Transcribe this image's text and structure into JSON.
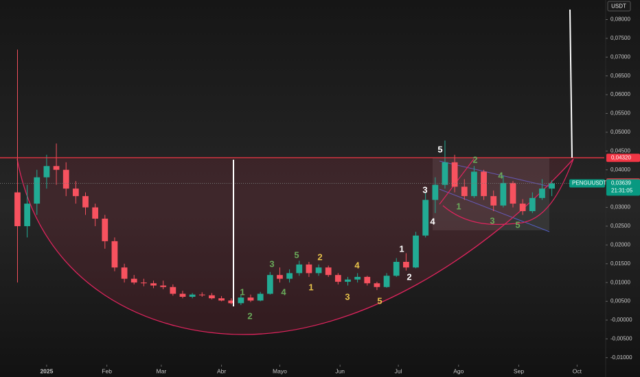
{
  "chart_data": {
    "type": "candlestick",
    "currency": "USDT",
    "up_color": "#22ab94",
    "down_color": "#f7525f",
    "xlim": [
      -24,
      287
    ],
    "xticks": [
      {
        "value": 0,
        "label": "2025"
      },
      {
        "value": 31,
        "label": "Feb"
      },
      {
        "value": 59,
        "label": "Mar"
      },
      {
        "value": 90,
        "label": "Abr"
      },
      {
        "value": 120,
        "label": "Mayo"
      },
      {
        "value": 151,
        "label": "Jun"
      },
      {
        "value": 181,
        "label": "Jul"
      },
      {
        "value": 212,
        "label": "Ago"
      },
      {
        "value": 243,
        "label": "Sep"
      },
      {
        "value": 273,
        "label": "Oct"
      }
    ],
    "ylim": [
      -0.0115,
      0.0852
    ],
    "yticks": [
      {
        "value": 0.08,
        "label": "0,08000"
      },
      {
        "value": 0.075,
        "label": "0,07500"
      },
      {
        "value": 0.07,
        "label": "0,07000"
      },
      {
        "value": 0.065,
        "label": "0,06500"
      },
      {
        "value": 0.06,
        "label": "0,06000"
      },
      {
        "value": 0.055,
        "label": "0,05500"
      },
      {
        "value": 0.05,
        "label": "0,05000"
      },
      {
        "value": 0.045,
        "label": "0,04500"
      },
      {
        "value": 0.04,
        "label": "0,04000"
      },
      {
        "value": 0.03,
        "label": "0,03000"
      },
      {
        "value": 0.025,
        "label": "0,02500"
      },
      {
        "value": 0.02,
        "label": "0,02000"
      },
      {
        "value": 0.015,
        "label": "0,01500"
      },
      {
        "value": 0.01,
        "label": "0,01000"
      },
      {
        "value": 0.005,
        "label": "0,00500"
      },
      {
        "value": 0,
        "label": "-0,00000"
      },
      {
        "value": -0.005,
        "label": "-0,00500"
      },
      {
        "value": -0.01,
        "label": "-0,01000"
      }
    ],
    "candles": {
      "x": [
        -15,
        -10,
        -5,
        0,
        5,
        10,
        15,
        20,
        25,
        30,
        35,
        40,
        45,
        50,
        55,
        60,
        65,
        70,
        75,
        80,
        85,
        90,
        95,
        100,
        105,
        110,
        115,
        120,
        125,
        130,
        135,
        140,
        145,
        150,
        155,
        160,
        165,
        170,
        175,
        180,
        185,
        190,
        195,
        200,
        205,
        210,
        215,
        220,
        225,
        230,
        235,
        240,
        245,
        250,
        255,
        260
      ],
      "open": [
        0.034,
        0.025,
        0.031,
        0.038,
        0.041,
        0.04,
        0.035,
        0.033,
        0.03,
        0.027,
        0.021,
        0.014,
        0.011,
        0.01,
        0.0098,
        0.0092,
        0.0088,
        0.007,
        0.0062,
        0.0068,
        0.0066,
        0.0058,
        0.0052,
        0.0045,
        0.006,
        0.0052,
        0.007,
        0.012,
        0.011,
        0.0125,
        0.0148,
        0.0125,
        0.014,
        0.012,
        0.0102,
        0.0108,
        0.0115,
        0.0098,
        0.0088,
        0.0118,
        0.0155,
        0.014,
        0.0225,
        0.032,
        0.036,
        0.042,
        0.0355,
        0.033,
        0.0395,
        0.033,
        0.0305,
        0.0365,
        0.031,
        0.029,
        0.0325,
        0.035
      ],
      "high": [
        0.072,
        0.036,
        0.04,
        0.044,
        0.047,
        0.042,
        0.037,
        0.034,
        0.031,
        0.028,
        0.022,
        0.015,
        0.012,
        0.011,
        0.0105,
        0.0105,
        0.0095,
        0.0078,
        0.0072,
        0.0074,
        0.0072,
        0.0064,
        0.0058,
        0.0068,
        0.0068,
        0.0075,
        0.0128,
        0.014,
        0.0135,
        0.0158,
        0.0155,
        0.0148,
        0.0145,
        0.0125,
        0.0115,
        0.0125,
        0.0118,
        0.0102,
        0.0125,
        0.0165,
        0.0178,
        0.0235,
        0.034,
        0.038,
        0.0478,
        0.044,
        0.0375,
        0.041,
        0.04,
        0.0345,
        0.0385,
        0.037,
        0.0322,
        0.034,
        0.0375,
        0.0372
      ],
      "low": [
        0.01,
        0.022,
        0.028,
        0.035,
        0.036,
        0.033,
        0.031,
        0.028,
        0.025,
        0.019,
        0.013,
        0.01,
        0.0095,
        0.009,
        0.0085,
        0.0082,
        0.0065,
        0.0058,
        0.0058,
        0.0062,
        0.0055,
        0.005,
        0.0042,
        0.004,
        0.0048,
        0.005,
        0.0068,
        0.01,
        0.01,
        0.0118,
        0.0115,
        0.0118,
        0.0115,
        0.0095,
        0.0092,
        0.01,
        0.0092,
        0.008,
        0.0086,
        0.0115,
        0.0132,
        0.0138,
        0.022,
        0.0285,
        0.035,
        0.034,
        0.032,
        0.0325,
        0.032,
        0.029,
        0.03,
        0.03,
        0.028,
        0.0285,
        0.032,
        0.033
      ],
      "close": [
        0.025,
        0.031,
        0.038,
        0.041,
        0.04,
        0.035,
        0.033,
        0.03,
        0.027,
        0.021,
        0.014,
        0.011,
        0.01,
        0.0098,
        0.0092,
        0.0088,
        0.007,
        0.0062,
        0.0068,
        0.0066,
        0.0058,
        0.0052,
        0.0045,
        0.006,
        0.0052,
        0.007,
        0.012,
        0.011,
        0.0125,
        0.0148,
        0.0125,
        0.014,
        0.012,
        0.0102,
        0.0108,
        0.0115,
        0.0098,
        0.0088,
        0.0118,
        0.0155,
        0.014,
        0.0225,
        0.032,
        0.036,
        0.042,
        0.0355,
        0.033,
        0.0395,
        0.033,
        0.0305,
        0.0365,
        0.031,
        0.029,
        0.0325,
        0.035,
        0.0364
      ]
    },
    "price_lines": [
      {
        "value": 0.0432,
        "label": "0,04320",
        "color": "#f23645"
      },
      {
        "value": 0.03663,
        "label": "0,03663",
        "color": "#f23645"
      }
    ],
    "current_price": {
      "symbol": "PENGUUSDT",
      "value": 0.03639,
      "label": "0,03639",
      "countdown": "21:31:05",
      "color": "#089981"
    },
    "wave_labels": [
      {
        "color": "#6aab5a",
        "labels": [
          "1",
          "2",
          "3",
          "4",
          "5"
        ]
      },
      {
        "color": "#e8c34a",
        "labels": [
          "1",
          "2",
          "3",
          "4",
          "5"
        ]
      },
      {
        "color": "#ffffff",
        "labels": [
          "1",
          "2",
          "3",
          "4",
          "5"
        ]
      },
      {
        "color": "#6aab5a",
        "labels": [
          "1",
          "2",
          "3",
          "4",
          "5"
        ]
      }
    ]
  }
}
